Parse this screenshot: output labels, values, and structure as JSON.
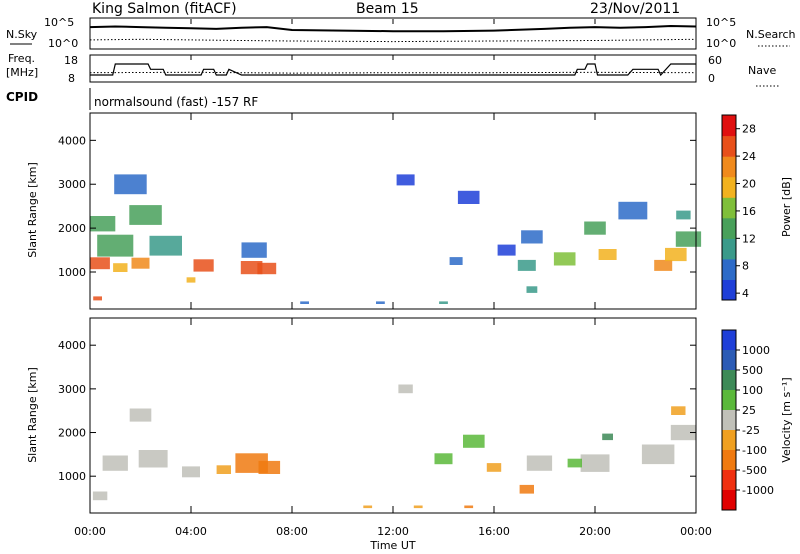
{
  "header": {
    "station": "King Salmon (fitACF)",
    "beam": "Beam 15",
    "date": "23/Nov/2011",
    "cpid_label": "CPID",
    "cpid_value": "normalsound (fast) -157 RF"
  },
  "strips": {
    "nsky_label": "N.Sky",
    "nsearch_label": "N.Search",
    "freq_label_1": "Freq.",
    "freq_label_2": "[MHz]",
    "nave_label": "Nave",
    "noise_ticks_left": [
      "10^5",
      "10^0"
    ],
    "noise_ticks_right": [
      "10^5",
      "10^0"
    ],
    "freq_ticks": [
      "18",
      "8"
    ],
    "nave_ticks": [
      "60",
      "0"
    ]
  },
  "axes": {
    "xlabel": "Time UT",
    "ylabel": "Slant Range [km]",
    "x_ticks": [
      "00:00",
      "04:00",
      "08:00",
      "12:00",
      "16:00",
      "20:00",
      "00:00"
    ],
    "y_ticks": [
      "1000",
      "2000",
      "3000",
      "4000"
    ]
  },
  "colorbars": {
    "power_label": "Power [dB]",
    "power_ticks": [
      "4",
      "8",
      "12",
      "16",
      "20",
      "24",
      "28"
    ],
    "velocity_label": "Velocity [m s⁻¹]",
    "velocity_ticks": [
      "1000",
      "500",
      "100",
      "25",
      "-25",
      "-100",
      "-500",
      "-1000"
    ]
  },
  "chart_data": [
    {
      "type": "line",
      "title": "King Salmon (fitACF)",
      "series": [
        {
          "name": "N.Sky",
          "x": [
            0,
            1,
            2,
            3,
            4,
            5,
            6,
            7,
            8,
            10,
            12,
            14,
            16,
            18,
            19,
            20,
            21,
            22,
            23,
            24
          ],
          "values": [
            3.6,
            3.7,
            3.6,
            3.5,
            3.4,
            3.3,
            3.5,
            3.6,
            3.1,
            3.0,
            2.9,
            2.9,
            3.0,
            3.3,
            3.5,
            3.6,
            3.5,
            3.6,
            3.8,
            3.7
          ]
        },
        {
          "name": "N.Search",
          "x": [
            0,
            2,
            4,
            6,
            8,
            12,
            16,
            20,
            22,
            24
          ],
          "values": [
            1.4,
            1.5,
            1.4,
            1.3,
            1.2,
            1.1,
            1.2,
            1.3,
            1.4,
            1.5
          ]
        }
      ],
      "xlabel": "Time UT",
      "ylim": [
        0,
        5
      ]
    },
    {
      "type": "line",
      "series": [
        {
          "name": "Freq.",
          "x": [
            0,
            0.9,
            1.0,
            2.3,
            2.4,
            2.9,
            3.0,
            4.4,
            4.5,
            4.9,
            5.0,
            5.4,
            5.5,
            6.0,
            19.2,
            19.3,
            19.6,
            19.7,
            20.0,
            20.1,
            21.3,
            21.5,
            22.5,
            22.6,
            23.0,
            24.0
          ],
          "values": [
            10.4,
            10.4,
            14.8,
            14.8,
            12.7,
            12.7,
            10.4,
            10.4,
            12.7,
            12.7,
            10.4,
            10.4,
            12.7,
            10.4,
            10.4,
            12.7,
            12.7,
            14.8,
            14.8,
            10.4,
            10.4,
            12.7,
            12.7,
            10.4,
            14.8,
            14.8
          ]
        },
        {
          "name": "Nave",
          "x": [
            0,
            4,
            8,
            12,
            16,
            20,
            24
          ],
          "values": [
            20,
            21,
            19,
            20,
            20,
            21,
            20
          ]
        }
      ],
      "ylim": [
        8,
        18
      ]
    },
    {
      "type": "heatmap",
      "title": "Power",
      "xlabel": "Time UT",
      "ylabel": "Slant Range [km]",
      "xlim": [
        0,
        24
      ],
      "ylim": [
        180,
        4600
      ],
      "zlim": [
        3,
        30
      ],
      "cells": [
        [
          0.4,
          1200,
          270,
          24
        ],
        [
          1.2,
          1100,
          200,
          20
        ],
        [
          2.0,
          1200,
          250,
          22
        ],
        [
          4.5,
          1150,
          280,
          24
        ],
        [
          6.4,
          1100,
          300,
          26
        ],
        [
          7.0,
          1080,
          260,
          24
        ],
        [
          1.0,
          1600,
          500,
          12
        ],
        [
          3.0,
          1600,
          450,
          10
        ],
        [
          6.5,
          1500,
          350,
          8
        ],
        [
          0.5,
          2100,
          350,
          14
        ],
        [
          2.2,
          2300,
          450,
          12
        ],
        [
          1.6,
          3000,
          450,
          6
        ],
        [
          0.3,
          400,
          90,
          26
        ],
        [
          4.0,
          820,
          120,
          18
        ],
        [
          14.5,
          1250,
          180,
          6
        ],
        [
          16.5,
          1500,
          250,
          4
        ],
        [
          17.5,
          1800,
          300,
          6
        ],
        [
          15.0,
          2700,
          300,
          4
        ],
        [
          12.5,
          3100,
          250,
          5
        ],
        [
          17.3,
          1150,
          250,
          10
        ],
        [
          18.8,
          1300,
          300,
          16
        ],
        [
          20.5,
          1400,
          250,
          18
        ],
        [
          22.7,
          1150,
          250,
          22
        ],
        [
          23.2,
          1400,
          300,
          18
        ],
        [
          20.0,
          2000,
          300,
          12
        ],
        [
          23.5,
          2300,
          200,
          10
        ],
        [
          17.5,
          600,
          150,
          10
        ],
        [
          8.5,
          300,
          60,
          8
        ],
        [
          11.5,
          300,
          60,
          6
        ],
        [
          14.0,
          300,
          60,
          10
        ],
        [
          21.5,
          2400,
          400,
          8
        ],
        [
          23.7,
          1750,
          350,
          12
        ]
      ]
    },
    {
      "type": "heatmap",
      "title": "Velocity",
      "xlabel": "Time UT",
      "ylabel": "Slant Range [km]",
      "xlim": [
        0,
        24
      ],
      "ylim": [
        180,
        4600
      ],
      "zlim": [
        -1000,
        1000
      ],
      "cells": [
        [
          1.0,
          1300,
          350,
          0
        ],
        [
          2.5,
          1400,
          400,
          0
        ],
        [
          4.0,
          1100,
          250,
          0
        ],
        [
          6.4,
          1300,
          450,
          -120
        ],
        [
          7.1,
          1200,
          300,
          -150
        ],
        [
          5.3,
          1150,
          200,
          -80
        ],
        [
          0.4,
          550,
          200,
          -20
        ],
        [
          14.0,
          1400,
          250,
          80
        ],
        [
          15.2,
          1800,
          300,
          60
        ],
        [
          16.0,
          1200,
          200,
          -80
        ],
        [
          17.8,
          1300,
          350,
          0
        ],
        [
          20.0,
          1300,
          400,
          0
        ],
        [
          22.5,
          1500,
          450,
          0
        ],
        [
          23.5,
          2000,
          350,
          0
        ],
        [
          19.2,
          1300,
          200,
          50
        ],
        [
          2.0,
          2400,
          300,
          0
        ],
        [
          12.5,
          3000,
          200,
          0
        ],
        [
          11.0,
          300,
          60,
          -100
        ],
        [
          13.0,
          300,
          60,
          -100
        ],
        [
          15.0,
          300,
          60,
          -120
        ],
        [
          17.3,
          700,
          200,
          -200
        ],
        [
          23.3,
          2500,
          200,
          -80
        ],
        [
          20.5,
          1900,
          150,
          120
        ]
      ]
    }
  ]
}
